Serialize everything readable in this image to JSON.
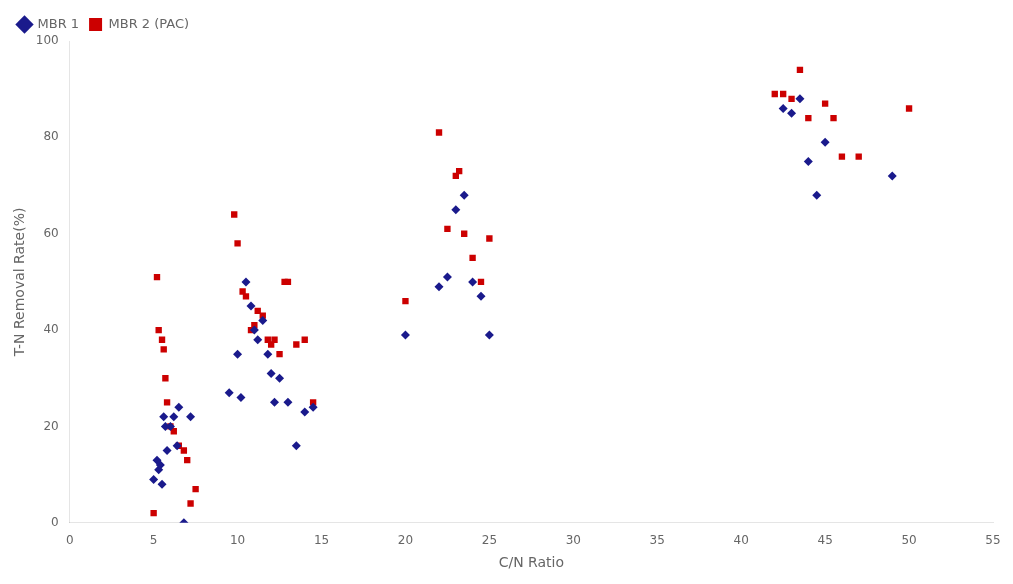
{
  "chart_data": {
    "type": "scatter",
    "xlabel": "C/N Ratio",
    "ylabel": "T-N Removal Rate(%)",
    "xlim": [
      0,
      55
    ],
    "ylim": [
      0,
      100
    ],
    "xticks": [
      0,
      5,
      10,
      15,
      20,
      25,
      30,
      35,
      40,
      45,
      50,
      55
    ],
    "yticks": [
      0,
      20,
      40,
      60,
      80,
      100
    ],
    "grid": false,
    "legend": "upper left",
    "series": [
      {
        "name": "MBR 1",
        "color": "#1a1a8c",
        "marker": "diamond",
        "x": [
          5.0,
          5.2,
          5.3,
          5.4,
          5.5,
          5.6,
          5.7,
          5.8,
          6.0,
          6.2,
          6.4,
          6.5,
          6.8,
          7.2,
          9.5,
          10.0,
          10.2,
          10.5,
          10.8,
          11.0,
          11.2,
          11.5,
          11.8,
          12.0,
          12.2,
          12.5,
          13.0,
          13.5,
          14.0,
          14.5,
          20.0,
          22.0,
          22.5,
          23.0,
          23.5,
          24.0,
          24.5,
          25.0,
          42.5,
          43.0,
          43.5,
          44.0,
          44.5,
          45.0,
          49.0
        ],
        "values": [
          9.0,
          13.0,
          11.0,
          12.0,
          8.0,
          22.0,
          20.0,
          15.0,
          20.0,
          22.0,
          16.0,
          24.0,
          0.0,
          22.0,
          27.0,
          35.0,
          26.0,
          50.0,
          45.0,
          40.0,
          38.0,
          42.0,
          35.0,
          31.0,
          25.0,
          30.0,
          25.0,
          16.0,
          23.0,
          24.0,
          39.0,
          49.0,
          51.0,
          65.0,
          68.0,
          50.0,
          47.0,
          39.0,
          86.0,
          85.0,
          88.0,
          75.0,
          68.0,
          79.0,
          72.0
        ]
      },
      {
        "name": "MBR 2 (PAC)",
        "color": "#cc0000",
        "marker": "square",
        "x": [
          5.0,
          5.2,
          5.3,
          5.5,
          5.6,
          5.7,
          5.8,
          6.0,
          6.2,
          6.5,
          6.8,
          7.0,
          7.2,
          7.5,
          9.8,
          10.0,
          10.3,
          10.5,
          10.8,
          11.0,
          11.2,
          11.5,
          11.8,
          12.0,
          12.2,
          12.5,
          12.8,
          13.0,
          13.5,
          14.0,
          14.5,
          20.0,
          22.0,
          22.5,
          23.0,
          23.2,
          23.5,
          24.0,
          24.5,
          25.0,
          42.0,
          42.5,
          43.0,
          43.5,
          44.0,
          45.0,
          45.5,
          46.0,
          47.0,
          50.0
        ],
        "values": [
          2.0,
          51.0,
          40.0,
          38.0,
          36.0,
          30.0,
          25.0,
          20.0,
          19.0,
          16.0,
          15.0,
          13.0,
          4.0,
          7.0,
          64.0,
          58.0,
          48.0,
          47.0,
          40.0,
          41.0,
          44.0,
          43.0,
          38.0,
          37.0,
          38.0,
          35.0,
          50.0,
          50.0,
          37.0,
          38.0,
          25.0,
          46.0,
          81.0,
          61.0,
          72.0,
          73.0,
          60.0,
          55.0,
          50.0,
          59.0,
          89.0,
          89.0,
          88.0,
          94.0,
          84.0,
          87.0,
          84.0,
          76.0,
          76.0,
          86.0
        ]
      }
    ]
  }
}
